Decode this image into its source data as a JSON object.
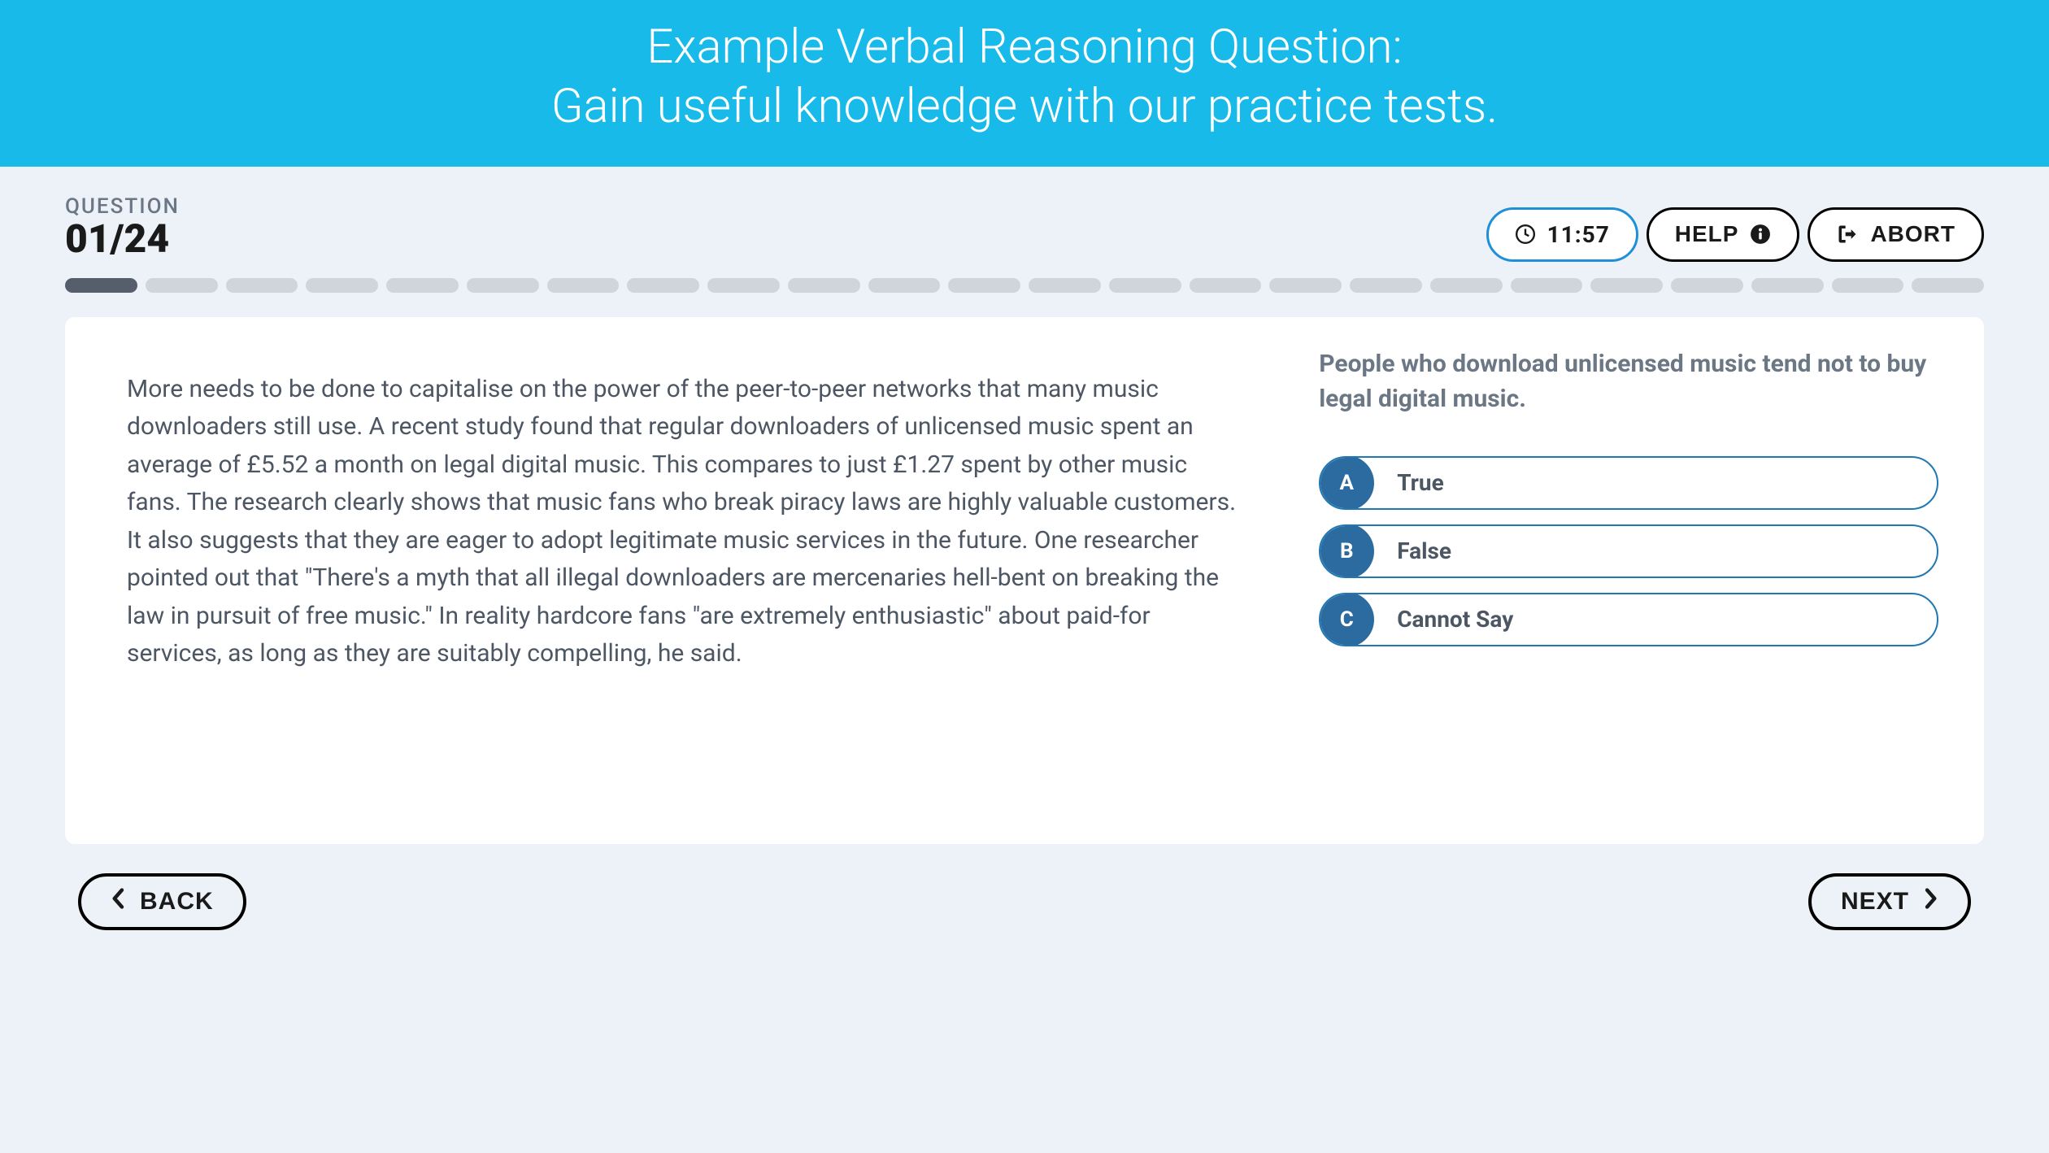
{
  "hero": {
    "line1": "Example Verbal Reasoning Question:",
    "line2": "Gain useful knowledge with our practice tests.",
    "bg_color": "#18baea",
    "text_color": "#ffffff"
  },
  "question_indicator": {
    "label": "QUESTION",
    "current": "01",
    "total": "24",
    "display": "01/24"
  },
  "top_buttons": {
    "timer_value": "11:57",
    "help_label": "HELP",
    "abort_label": "ABORT"
  },
  "progress": {
    "total_segments": 24,
    "active_index": 0,
    "active_color": "#565e6c",
    "inactive_color": "#d0d5dd"
  },
  "passage": {
    "text": "More needs to be done to capitalise on the power of the peer-to-peer networks that many music downloaders still use. A recent study found that regular downloaders of unlicensed music spent an average of £5.52 a month on legal digital music. This compares to just £1.27 spent by other music fans. The research clearly shows that music fans who break piracy laws are highly valuable customers. It also suggests that they are eager to adopt legitimate music services in the future. One researcher pointed out that \"There's a myth that all illegal downloaders are mercenaries hell-bent on breaking the law in pursuit of free music.\" In reality hardcore fans \"are extremely enthusiastic\" about paid-for services, as long as they are suitably compelling, he said."
  },
  "question": {
    "statement": "People who download unlicensed music tend not to buy legal digital music.",
    "options": [
      {
        "letter": "A",
        "label": "True"
      },
      {
        "letter": "B",
        "label": "False"
      },
      {
        "letter": "C",
        "label": "Cannot Say"
      }
    ],
    "option_border_color": "#1f78b4",
    "option_letter_bg": "#2c6ba0"
  },
  "nav": {
    "back_label": "BACK",
    "next_label": "NEXT"
  },
  "colors": {
    "page_bg": "#edf2f9",
    "card_bg": "#ffffff",
    "text_muted": "#6b7785",
    "text_body": "#4d5663",
    "text_strong": "#1a1a1a"
  }
}
